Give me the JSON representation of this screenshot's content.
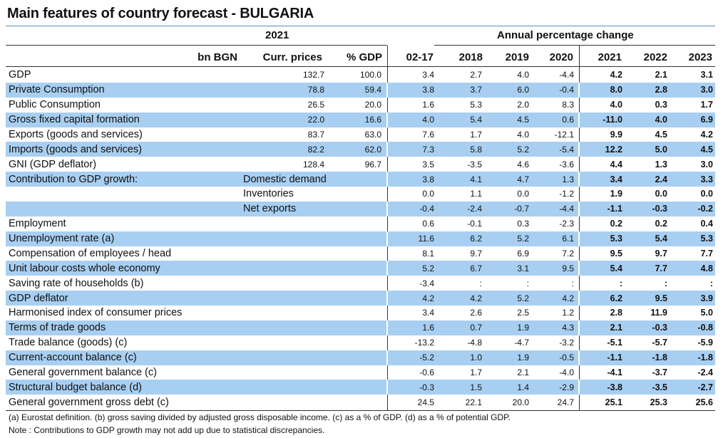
{
  "title": "Main features of country forecast - BULGARIA",
  "header": {
    "year_group": "2021",
    "change_group": "Annual percentage change",
    "columns": [
      "bn BGN",
      "Curr. prices",
      "% GDP",
      "02-17",
      "2018",
      "2019",
      "2020",
      "2021",
      "2022",
      "2023"
    ]
  },
  "rows": [
    {
      "label": "GDP",
      "sub": "",
      "cells": [
        "132.7",
        "100.0",
        "3.4",
        "2.7",
        "4.0",
        "-4.4",
        "4.2",
        "2.1",
        "3.1"
      ],
      "shaded": false
    },
    {
      "label": "Private Consumption",
      "sub": "",
      "cells": [
        "78.8",
        "59.4",
        "3.8",
        "3.7",
        "6.0",
        "-0.4",
        "8.0",
        "2.8",
        "3.0"
      ],
      "shaded": true
    },
    {
      "label": "Public Consumption",
      "sub": "",
      "cells": [
        "26.5",
        "20.0",
        "1.6",
        "5.3",
        "2.0",
        "8.3",
        "4.0",
        "0.3",
        "1.7"
      ],
      "shaded": false
    },
    {
      "label": "Gross fixed capital formation",
      "sub": "",
      "cells": [
        "22.0",
        "16.6",
        "4.0",
        "5.4",
        "4.5",
        "0.6",
        "-11.0",
        "4.0",
        "6.9"
      ],
      "shaded": true
    },
    {
      "label": "Exports (goods and services)",
      "sub": "",
      "cells": [
        "83.7",
        "63.0",
        "7.6",
        "1.7",
        "4.0",
        "-12.1",
        "9.9",
        "4.5",
        "4.2"
      ],
      "shaded": false
    },
    {
      "label": "Imports (goods and services)",
      "sub": "",
      "cells": [
        "82.2",
        "62.0",
        "7.3",
        "5.8",
        "5.2",
        "-5.4",
        "12.2",
        "5.0",
        "4.5"
      ],
      "shaded": true
    },
    {
      "label": "GNI (GDP deflator)",
      "sub": "",
      "cells": [
        "128.4",
        "96.7",
        "3.5",
        "-3.5",
        "4.6",
        "-3.6",
        "4.4",
        "1.3",
        "3.0"
      ],
      "shaded": false
    },
    {
      "label": "Contribution to GDP growth:",
      "sub": "Domestic demand",
      "cells": [
        "",
        "",
        "3.8",
        "4.1",
        "4.7",
        "1.3",
        "3.4",
        "2.4",
        "3.3"
      ],
      "shaded": true
    },
    {
      "label": "",
      "sub": "Inventories",
      "cells": [
        "",
        "",
        "0.0",
        "1.1",
        "0.0",
        "-1.2",
        "1.9",
        "0.0",
        "0.0"
      ],
      "shaded": false
    },
    {
      "label": "",
      "sub": "Net exports",
      "cells": [
        "",
        "",
        "-0.4",
        "-2.4",
        "-0.7",
        "-4.4",
        "-1.1",
        "-0.3",
        "-0.2"
      ],
      "shaded": true
    },
    {
      "label": "Employment",
      "sub": "",
      "cells": [
        "",
        "",
        "0.6",
        "-0.1",
        "0.3",
        "-2.3",
        "0.2",
        "0.2",
        "0.4"
      ],
      "shaded": false
    },
    {
      "label": "Unemployment rate (a)",
      "sub": "",
      "cells": [
        "",
        "",
        "11.6",
        "6.2",
        "5.2",
        "6.1",
        "5.3",
        "5.4",
        "5.3"
      ],
      "shaded": true
    },
    {
      "label": "Compensation of employees / head",
      "sub": "",
      "cells": [
        "",
        "",
        "8.1",
        "9.7",
        "6.9",
        "7.2",
        "9.5",
        "9.7",
        "7.7"
      ],
      "shaded": false
    },
    {
      "label": "Unit labour costs whole economy",
      "sub": "",
      "cells": [
        "",
        "",
        "5.2",
        "6.7",
        "3.1",
        "9.5",
        "5.4",
        "7.7",
        "4.8"
      ],
      "shaded": true
    },
    {
      "label": "Saving rate of households (b)",
      "sub": "",
      "cells": [
        "",
        "",
        "-3.4",
        ":",
        ":",
        ":",
        ":",
        ":",
        ":"
      ],
      "shaded": false
    },
    {
      "label": "GDP deflator",
      "sub": "",
      "cells": [
        "",
        "",
        "4.2",
        "4.2",
        "5.2",
        "4.2",
        "6.2",
        "9.5",
        "3.9"
      ],
      "shaded": true
    },
    {
      "label": "Harmonised index of consumer prices",
      "sub": "",
      "cells": [
        "",
        "",
        "3.4",
        "2.6",
        "2.5",
        "1.2",
        "2.8",
        "11.9",
        "5.0"
      ],
      "shaded": false
    },
    {
      "label": "Terms of trade goods",
      "sub": "",
      "cells": [
        "",
        "",
        "1.6",
        "0.7",
        "1.9",
        "4.3",
        "2.1",
        "-0.3",
        "-0.8"
      ],
      "shaded": true
    },
    {
      "label": "Trade balance (goods) (c)",
      "sub": "",
      "cells": [
        "",
        "",
        "-13.2",
        "-4.8",
        "-4.7",
        "-3.2",
        "-5.1",
        "-5.7",
        "-5.9"
      ],
      "shaded": false
    },
    {
      "label": "Current-account balance (c)",
      "sub": "",
      "cells": [
        "",
        "",
        "-5.2",
        "1.0",
        "1.9",
        "-0.5",
        "-1.1",
        "-1.8",
        "-1.8"
      ],
      "shaded": true
    },
    {
      "label": "General government balance (c)",
      "sub": "",
      "cells": [
        "",
        "",
        "-0.6",
        "1.7",
        "2.1",
        "-4.0",
        "-4.1",
        "-3.7",
        "-2.4"
      ],
      "shaded": false
    },
    {
      "label": "Structural budget balance (d)",
      "sub": "",
      "cells": [
        "",
        "",
        "-0.3",
        "1.5",
        "1.4",
        "-2.9",
        "-3.8",
        "-3.5",
        "-2.7"
      ],
      "shaded": true
    },
    {
      "label": "General government gross debt (c)",
      "sub": "",
      "cells": [
        "",
        "",
        "24.5",
        "22.1",
        "20.0",
        "24.7",
        "25.1",
        "25.3",
        "25.6"
      ],
      "shaded": false
    }
  ],
  "footnotes": {
    "line1": "(a) Eurostat definition.  (b) gross saving divided by adjusted gross disposable income.  (c) as a % of GDP.  (d) as a % of potential GDP.",
    "line2": "Note : Contributions to GDP growth may not add up due to statistical discrepancies."
  }
}
